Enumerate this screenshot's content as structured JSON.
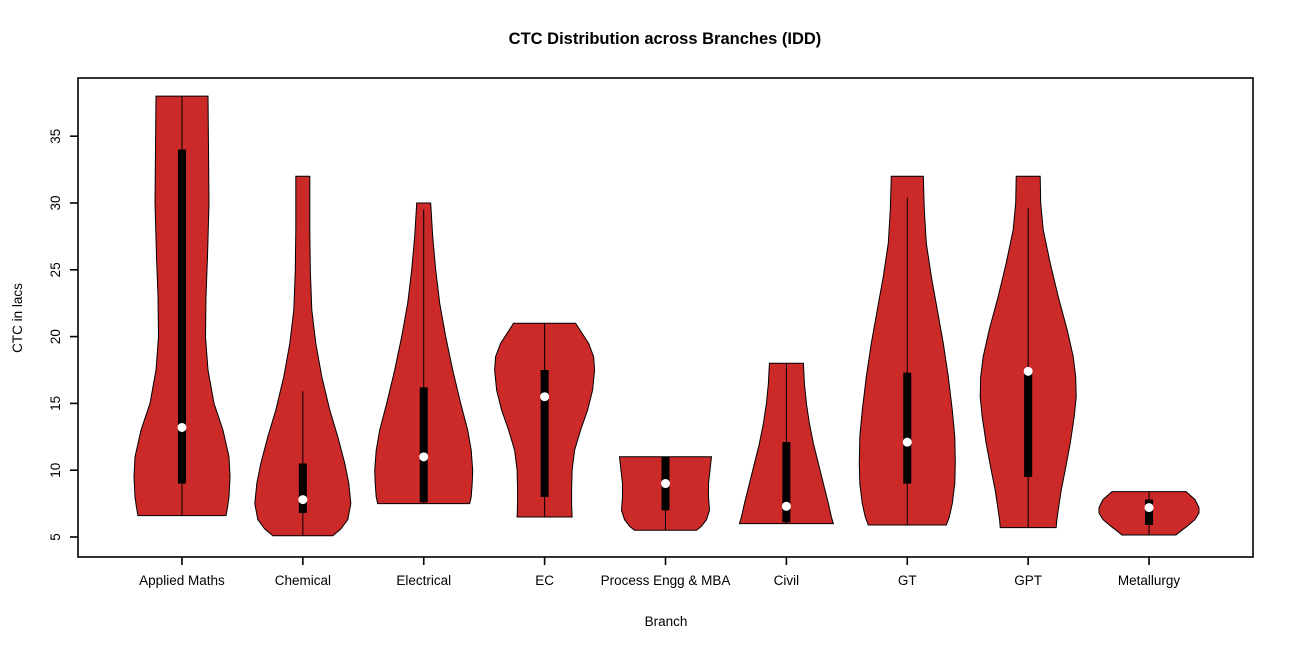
{
  "chart_data": {
    "type": "violin",
    "title": "CTC Distribution across Branches (IDD)",
    "xlabel": "Branch",
    "ylabel": "CTC in lacs",
    "yticks": [
      5,
      10,
      15,
      20,
      25,
      30,
      35
    ],
    "ylim": [
      3.5,
      39.4
    ],
    "grid": false,
    "legend": "none",
    "categories": [
      "Applied Maths",
      "Chemical",
      "Electrical",
      "EC",
      "Process Engg & MBA",
      "Civil",
      "GT",
      "GPT",
      "Metallurgy"
    ],
    "colors": {
      "violin_fill": "#CC2929",
      "outline": "#000000",
      "box": "#000000",
      "median_dot": "#FFFFFF",
      "background": "#FFFFFF",
      "text": "#000000"
    },
    "series": [
      {
        "name": "Applied Maths",
        "min": 6.6,
        "max": 38,
        "q1": 9.0,
        "q3": 34.0,
        "median": 13.2,
        "whisker_low": 6.6,
        "whisker_high": 38,
        "profile": [
          [
            38,
            26
          ],
          [
            34,
            26.5
          ],
          [
            30,
            27
          ],
          [
            26,
            25.5
          ],
          [
            23,
            24
          ],
          [
            20,
            23.5
          ],
          [
            17.5,
            26
          ],
          [
            15,
            32
          ],
          [
            13,
            41
          ],
          [
            11,
            47
          ],
          [
            9.5,
            48
          ],
          [
            8,
            47
          ],
          [
            7.2,
            45.5
          ],
          [
            6.6,
            44
          ]
        ]
      },
      {
        "name": "Chemical",
        "min": 5.1,
        "max": 32,
        "q1": 6.8,
        "q3": 10.5,
        "median": 7.8,
        "whisker_low": 5.1,
        "whisker_high": 15.9,
        "profile": [
          [
            32,
            7
          ],
          [
            28,
            7
          ],
          [
            25,
            7.5
          ],
          [
            22,
            9
          ],
          [
            19.5,
            13
          ],
          [
            17,
            19
          ],
          [
            14.5,
            27
          ],
          [
            12.5,
            35
          ],
          [
            10.5,
            42
          ],
          [
            9,
            46
          ],
          [
            7.5,
            48
          ],
          [
            6.3,
            45
          ],
          [
            5.6,
            38
          ],
          [
            5.1,
            30
          ]
        ]
      },
      {
        "name": "Electrical",
        "min": 7.5,
        "max": 30,
        "q1": 7.6,
        "q3": 16.2,
        "median": 11.0,
        "whisker_low": 7.5,
        "whisker_high": 29.5,
        "profile": [
          [
            30,
            7
          ],
          [
            27.5,
            9
          ],
          [
            25,
            12
          ],
          [
            22.5,
            16
          ],
          [
            20,
            22
          ],
          [
            17.5,
            29
          ],
          [
            15,
            37
          ],
          [
            13,
            44
          ],
          [
            11.5,
            47.5
          ],
          [
            10,
            49
          ],
          [
            9,
            48.5
          ],
          [
            8,
            47.5
          ],
          [
            7.5,
            46
          ]
        ]
      },
      {
        "name": "EC",
        "min": 6.5,
        "max": 21,
        "q1": 8.0,
        "q3": 17.5,
        "median": 15.5,
        "whisker_low": 6.5,
        "whisker_high": 21,
        "profile": [
          [
            21,
            31
          ],
          [
            19.5,
            44
          ],
          [
            18.5,
            49
          ],
          [
            17.5,
            50
          ],
          [
            16,
            48
          ],
          [
            14.5,
            43
          ],
          [
            13,
            36
          ],
          [
            11.5,
            30
          ],
          [
            10,
            27.5
          ],
          [
            8.5,
            27
          ],
          [
            7.5,
            27
          ],
          [
            6.5,
            27.5
          ]
        ]
      },
      {
        "name": "Process Engg & MBA",
        "min": 5.5,
        "max": 11,
        "q1": 7.0,
        "q3": 11.0,
        "median": 9.0,
        "whisker_low": 5.5,
        "whisker_high": 11,
        "profile": [
          [
            11,
            46
          ],
          [
            10,
            44.5
          ],
          [
            9,
            43
          ],
          [
            8,
            43
          ],
          [
            7,
            44
          ],
          [
            6.3,
            41
          ],
          [
            5.8,
            36
          ],
          [
            5.5,
            31
          ]
        ]
      },
      {
        "name": "Civil",
        "min": 6.0,
        "max": 18,
        "q1": 6.1,
        "q3": 12.1,
        "median": 7.3,
        "whisker_low": 6.0,
        "whisker_high": 18,
        "profile": [
          [
            18,
            17
          ],
          [
            16.5,
            18
          ],
          [
            15,
            20
          ],
          [
            13.5,
            23
          ],
          [
            12,
            27
          ],
          [
            10.5,
            32
          ],
          [
            9,
            37
          ],
          [
            7.5,
            42
          ],
          [
            6.5,
            45
          ],
          [
            6.0,
            47
          ]
        ]
      },
      {
        "name": "GT",
        "min": 5.9,
        "max": 32,
        "q1": 9.0,
        "q3": 17.3,
        "median": 12.1,
        "whisker_low": 5.9,
        "whisker_high": 30.4,
        "profile": [
          [
            32,
            16
          ],
          [
            29.5,
            17
          ],
          [
            27,
            19
          ],
          [
            24.5,
            24
          ],
          [
            22,
            30
          ],
          [
            19.5,
            36
          ],
          [
            17,
            41
          ],
          [
            14.5,
            45
          ],
          [
            12.5,
            47.5
          ],
          [
            10.5,
            48
          ],
          [
            9,
            47.5
          ],
          [
            7.5,
            45
          ],
          [
            6.5,
            42
          ],
          [
            5.9,
            39
          ]
        ]
      },
      {
        "name": "GPT",
        "min": 5.7,
        "max": 32,
        "q1": 9.5,
        "q3": 17.4,
        "median": 17.4,
        "whisker_low": 5.7,
        "whisker_high": 29.6,
        "profile": [
          [
            32,
            12
          ],
          [
            30,
            12.5
          ],
          [
            28,
            15
          ],
          [
            25.5,
            22
          ],
          [
            23,
            30
          ],
          [
            20.5,
            39
          ],
          [
            18.5,
            45
          ],
          [
            17,
            47.5
          ],
          [
            15.5,
            48
          ],
          [
            14,
            46
          ],
          [
            12,
            42
          ],
          [
            10,
            37
          ],
          [
            8.5,
            33
          ],
          [
            7,
            30
          ],
          [
            6.2,
            28.5
          ],
          [
            5.7,
            28
          ]
        ]
      },
      {
        "name": "Metallurgy",
        "min": 5.15,
        "max": 8.4,
        "q1": 5.9,
        "q3": 7.8,
        "median": 7.2,
        "whisker_low": 5.15,
        "whisker_high": 8.4,
        "profile": [
          [
            8.4,
            37
          ],
          [
            7.8,
            46
          ],
          [
            7.2,
            50
          ],
          [
            6.8,
            50
          ],
          [
            6.3,
            46
          ],
          [
            5.8,
            38
          ],
          [
            5.4,
            31
          ],
          [
            5.15,
            27
          ]
        ]
      }
    ]
  }
}
